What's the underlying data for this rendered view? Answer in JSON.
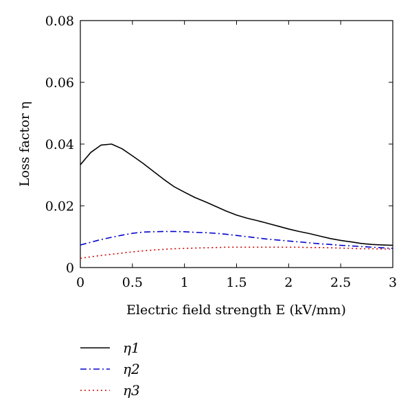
{
  "chart_data": {
    "type": "line",
    "xlabel": "Electric field strength E (kV/mm)",
    "ylabel": "Loss factor η",
    "xlim": [
      0,
      3
    ],
    "ylim": [
      0,
      0.08
    ],
    "x_ticks": [
      "0",
      "0.5",
      "1",
      "1.5",
      "2",
      "2.5",
      "3"
    ],
    "y_ticks": [
      "0",
      "0.02",
      "0.04",
      "0.06",
      "0.08"
    ],
    "grid": false,
    "legend_position": "below",
    "series": [
      {
        "name": "η1",
        "color": "#000000",
        "style": "solid",
        "x": [
          0,
          0.1,
          0.2,
          0.3,
          0.4,
          0.5,
          0.6,
          0.7,
          0.8,
          0.9,
          1.0,
          1.1,
          1.2,
          1.3,
          1.4,
          1.5,
          1.6,
          1.7,
          1.8,
          1.9,
          2.0,
          2.1,
          2.2,
          2.3,
          2.4,
          2.5,
          2.6,
          2.7,
          2.8,
          2.9,
          3.0
        ],
        "y": [
          0.0333,
          0.0373,
          0.0397,
          0.04,
          0.0385,
          0.0362,
          0.0338,
          0.0312,
          0.0286,
          0.0262,
          0.0244,
          0.0227,
          0.0213,
          0.0198,
          0.0183,
          0.017,
          0.016,
          0.0152,
          0.0143,
          0.0134,
          0.0125,
          0.0117,
          0.011,
          0.0102,
          0.0094,
          0.0088,
          0.0083,
          0.0078,
          0.0075,
          0.0073,
          0.0072
        ]
      },
      {
        "name": "η2",
        "color": "#0000cc",
        "style": "dashdot",
        "x": [
          0,
          0.1,
          0.2,
          0.3,
          0.4,
          0.5,
          0.6,
          0.7,
          0.8,
          0.9,
          1.0,
          1.1,
          1.2,
          1.3,
          1.4,
          1.5,
          1.6,
          1.7,
          1.8,
          1.9,
          2.0,
          2.1,
          2.2,
          2.3,
          2.4,
          2.5,
          2.6,
          2.7,
          2.8,
          2.9,
          3.0
        ],
        "y": [
          0.0073,
          0.0082,
          0.0091,
          0.0098,
          0.0105,
          0.0111,
          0.0115,
          0.0116,
          0.0117,
          0.0117,
          0.0116,
          0.0114,
          0.0113,
          0.0111,
          0.0108,
          0.0104,
          0.01,
          0.0096,
          0.0092,
          0.0089,
          0.0086,
          0.0083,
          0.008,
          0.0077,
          0.0075,
          0.0072,
          0.007,
          0.0068,
          0.0066,
          0.0064,
          0.0062
        ]
      },
      {
        "name": "η3",
        "color": "#cc0000",
        "style": "dotted",
        "x": [
          0,
          0.1,
          0.2,
          0.3,
          0.4,
          0.5,
          0.6,
          0.7,
          0.8,
          0.9,
          1.0,
          1.1,
          1.2,
          1.3,
          1.4,
          1.5,
          1.6,
          1.7,
          1.8,
          1.9,
          2.0,
          2.1,
          2.2,
          2.3,
          2.4,
          2.5,
          2.6,
          2.7,
          2.8,
          2.9,
          3.0
        ],
        "y": [
          0.003,
          0.0035,
          0.0039,
          0.0043,
          0.0047,
          0.0051,
          0.0054,
          0.0057,
          0.0059,
          0.0061,
          0.0062,
          0.0063,
          0.0064,
          0.0065,
          0.0066,
          0.0066,
          0.0066,
          0.0066,
          0.0066,
          0.0066,
          0.0066,
          0.0066,
          0.0065,
          0.0065,
          0.0064,
          0.0063,
          0.0062,
          0.0061,
          0.0061,
          0.006,
          0.006
        ]
      }
    ]
  }
}
